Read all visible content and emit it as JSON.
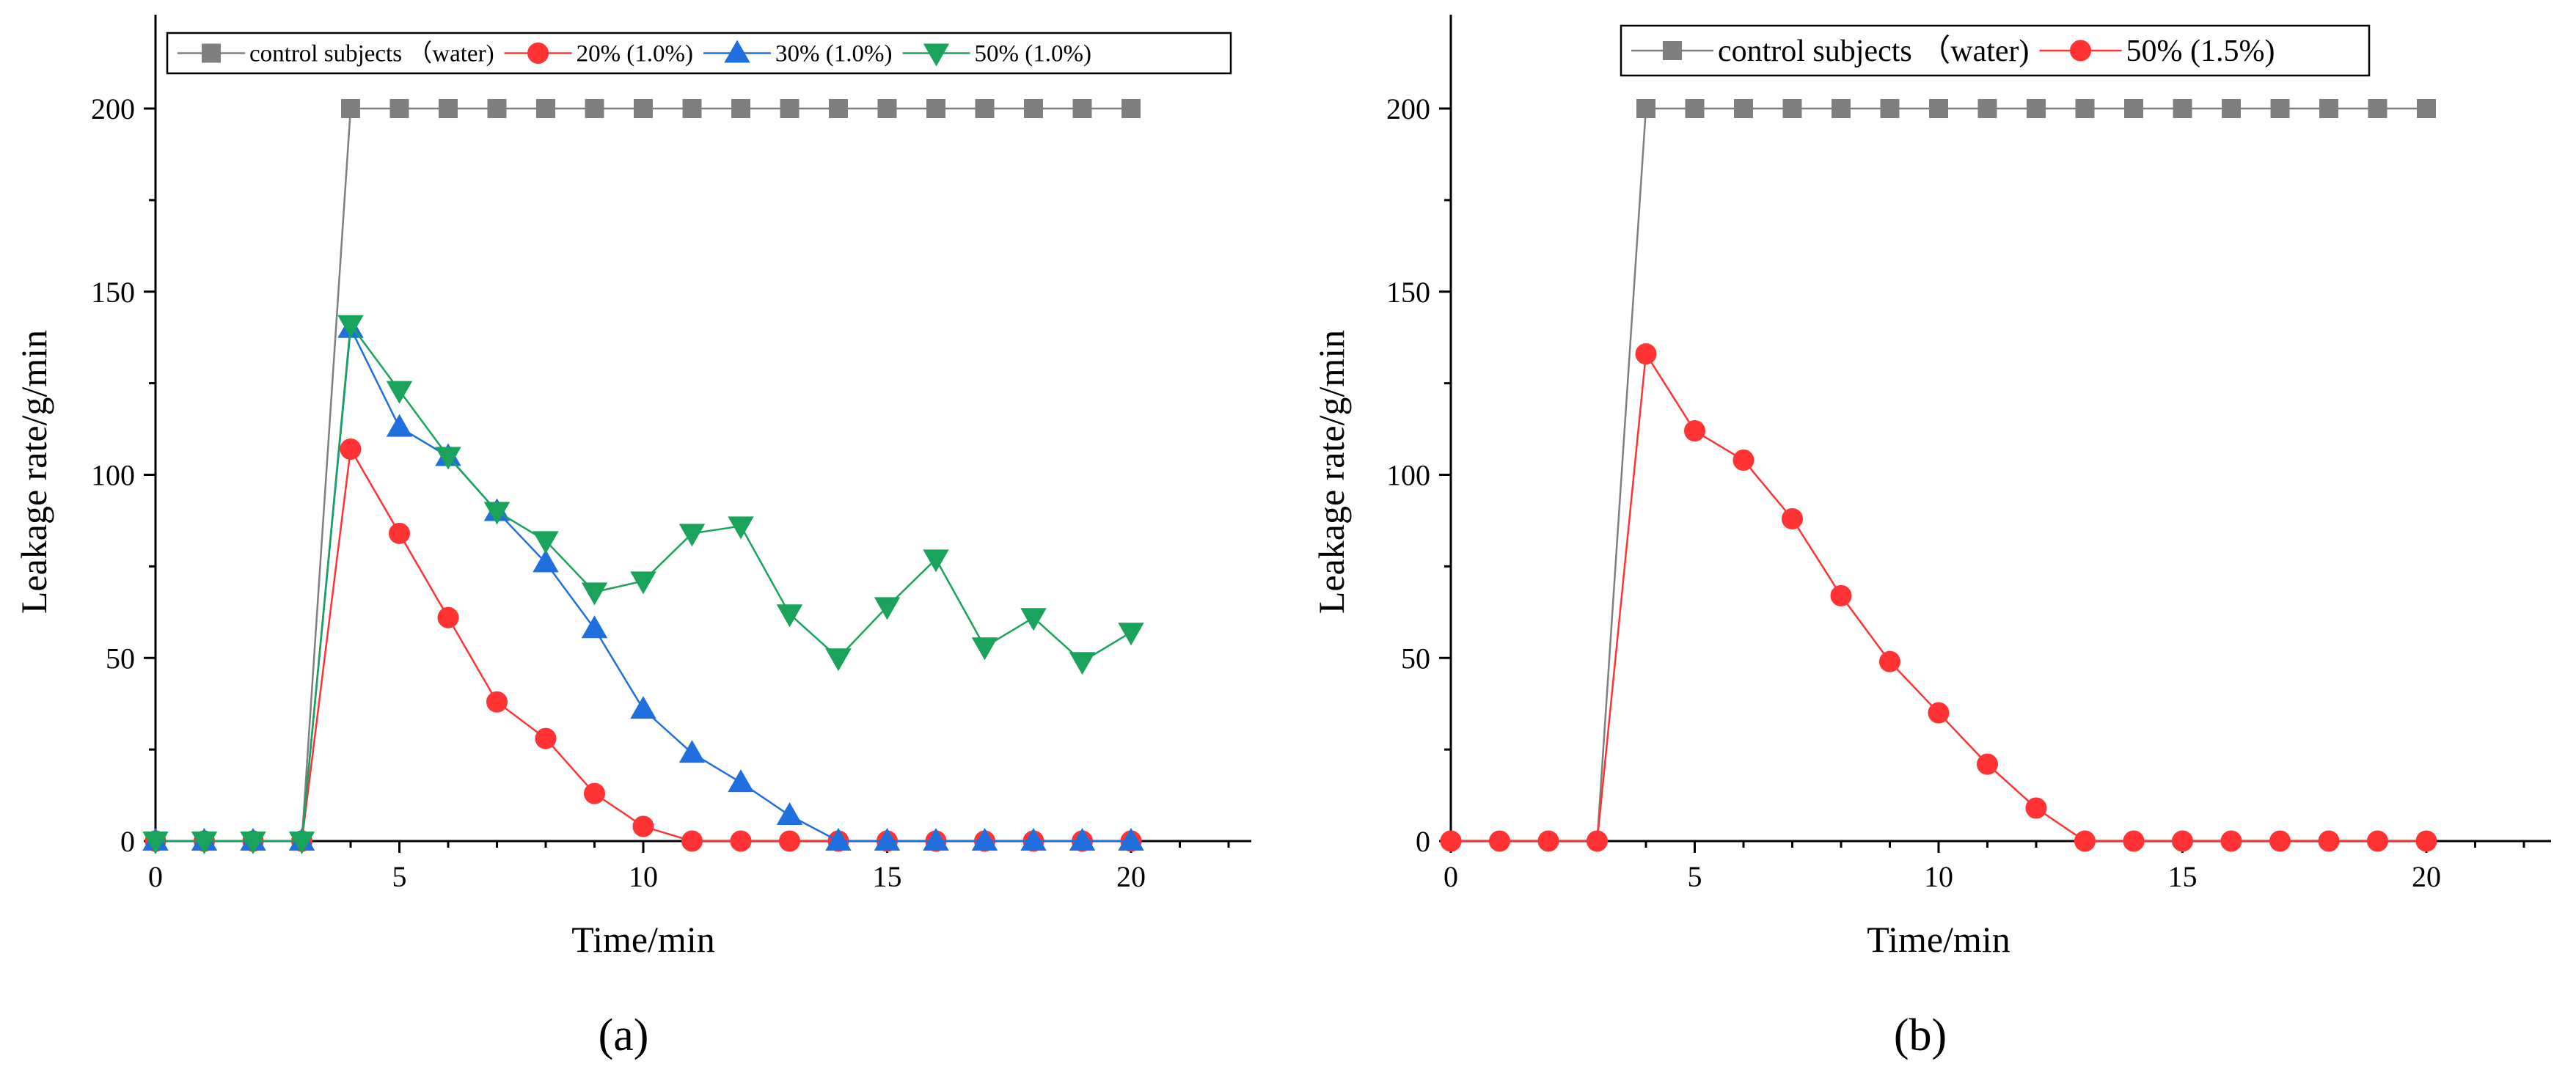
{
  "colors": {
    "control": "#7f7f7f",
    "s20": "#ff3333",
    "s30": "#1f6fde",
    "s50": "#1aa35b",
    "b50": "#ff3333"
  },
  "chart_data": [
    {
      "type": "line",
      "panel_label": "(a)",
      "title": "",
      "xlabel": "Time/min",
      "ylabel": "Leakage rate/g/min",
      "xlim": [
        0,
        22.5
      ],
      "ylim": [
        0,
        220
      ],
      "xticks": [
        0,
        5,
        10,
        15,
        20
      ],
      "yticks": [
        0,
        50,
        100,
        150,
        200
      ],
      "grid": false,
      "legend_position": "top",
      "x": [
        0,
        1,
        2,
        3,
        4,
        5,
        6,
        7,
        8,
        9,
        10,
        11,
        12,
        13,
        14,
        15,
        16,
        17,
        18,
        19,
        20
      ],
      "series": [
        {
          "name": "control subjects （water)",
          "marker": "square",
          "color_key": "control",
          "x": [
            4,
            5,
            6,
            7,
            8,
            9,
            10,
            11,
            12,
            13,
            14,
            15,
            16,
            17,
            18,
            19,
            20
          ],
          "values": [
            200,
            200,
            200,
            200,
            200,
            200,
            200,
            200,
            200,
            200,
            200,
            200,
            200,
            200,
            200,
            200,
            200
          ],
          "line_x": [
            3,
            4,
            5,
            6,
            7,
            8,
            9,
            10,
            11,
            12,
            13,
            14,
            15,
            16,
            17,
            18,
            19,
            20
          ],
          "line_values": [
            0,
            200,
            200,
            200,
            200,
            200,
            200,
            200,
            200,
            200,
            200,
            200,
            200,
            200,
            200,
            200,
            200,
            200
          ]
        },
        {
          "name": "20% (1.0%)",
          "marker": "circle",
          "color_key": "s20",
          "x": [
            0,
            1,
            2,
            3,
            4,
            5,
            6,
            7,
            8,
            9,
            10,
            11,
            12,
            13,
            14,
            15,
            16,
            17,
            18,
            19,
            20
          ],
          "values": [
            0,
            0,
            0,
            0,
            107,
            84,
            61,
            38,
            28,
            13,
            4,
            0,
            0,
            0,
            0,
            0,
            0,
            0,
            0,
            0,
            0
          ]
        },
        {
          "name": "30% (1.0%)",
          "marker": "triangle-up",
          "color_key": "s30",
          "x": [
            0,
            1,
            2,
            3,
            4,
            5,
            6,
            7,
            8,
            9,
            10,
            11,
            12,
            13,
            14,
            15,
            16,
            17,
            18,
            19,
            20
          ],
          "values": [
            0,
            0,
            0,
            0,
            140,
            113,
            105,
            90,
            76,
            58,
            36,
            24,
            16,
            7,
            0,
            0,
            0,
            0,
            0,
            0,
            0
          ]
        },
        {
          "name": "50% (1.0%)",
          "marker": "triangle-down",
          "color_key": "s50",
          "x": [
            0,
            1,
            2,
            3,
            4,
            5,
            6,
            7,
            8,
            9,
            10,
            11,
            12,
            13,
            14,
            15,
            16,
            17,
            18,
            19,
            20
          ],
          "values": [
            0,
            0,
            0,
            0,
            141,
            123,
            105,
            90,
            82,
            68,
            71,
            84,
            86,
            62,
            50,
            64,
            77,
            53,
            61,
            49,
            57
          ]
        }
      ]
    },
    {
      "type": "line",
      "panel_label": "(b)",
      "title": "",
      "xlabel": "Time/min",
      "ylabel": "Leakage rate/g/min",
      "xlim": [
        0,
        22.5
      ],
      "ylim": [
        0,
        225
      ],
      "xticks": [
        0,
        5,
        10,
        15,
        20
      ],
      "yticks": [
        0,
        50,
        100,
        150,
        200
      ],
      "grid": false,
      "legend_position": "top",
      "series": [
        {
          "name": "control subjects （water)",
          "marker": "square",
          "color_key": "control",
          "x": [
            4,
            5,
            6,
            7,
            8,
            9,
            10,
            11,
            12,
            13,
            14,
            15,
            16,
            17,
            18,
            19,
            20
          ],
          "values": [
            200,
            200,
            200,
            200,
            200,
            200,
            200,
            200,
            200,
            200,
            200,
            200,
            200,
            200,
            200,
            200,
            200
          ],
          "line_x": [
            3,
            4,
            5,
            6,
            7,
            8,
            9,
            10,
            11,
            12,
            13,
            14,
            15,
            16,
            17,
            18,
            19,
            20
          ],
          "line_values": [
            0,
            200,
            200,
            200,
            200,
            200,
            200,
            200,
            200,
            200,
            200,
            200,
            200,
            200,
            200,
            200,
            200,
            200
          ]
        },
        {
          "name": "50% (1.5%)",
          "marker": "circle",
          "color_key": "b50",
          "x": [
            0,
            1,
            2,
            3,
            4,
            5,
            6,
            7,
            8,
            9,
            10,
            11,
            12,
            13,
            14,
            15,
            16,
            17,
            18,
            19,
            20
          ],
          "values": [
            0,
            0,
            0,
            0,
            133,
            112,
            104,
            88,
            67,
            49,
            35,
            21,
            9,
            0,
            0,
            0,
            0,
            0,
            0,
            0,
            0
          ]
        }
      ]
    }
  ]
}
